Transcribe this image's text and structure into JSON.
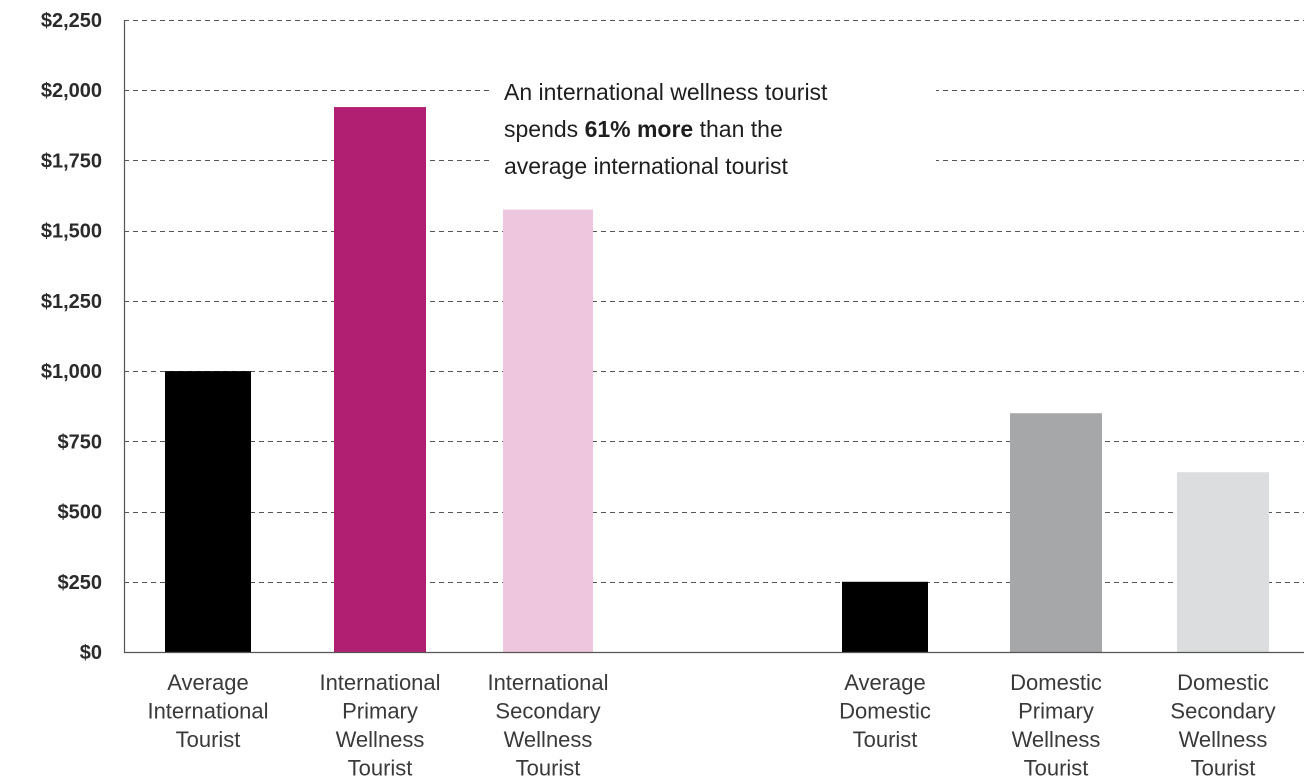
{
  "chart_data": {
    "type": "bar",
    "title": "",
    "xlabel": "",
    "ylabel": "",
    "ylim": [
      0,
      2250
    ],
    "grid": true,
    "yticks": [
      "$0",
      "$250",
      "$500",
      "$750",
      "$1,000",
      "$1,250",
      "$1,500",
      "$1,750",
      "$2,000",
      "$2,250"
    ],
    "ytick_values": [
      0,
      250,
      500,
      750,
      1000,
      1250,
      1500,
      1750,
      2000,
      2250
    ],
    "bars": [
      {
        "label": [
          "Average",
          "International",
          "Tourist"
        ],
        "value": 1000,
        "color": "#000000"
      },
      {
        "label": [
          "International",
          "Primary",
          "Wellness",
          "Tourist"
        ],
        "value": 1940,
        "color": "#b01f72"
      },
      {
        "label": [
          "International",
          "Secondary",
          "Wellness",
          "Tourist"
        ],
        "value": 1575,
        "color": "#eec7df"
      },
      {
        "label": [
          "Average",
          "Domestic",
          "Tourist"
        ],
        "value": 250,
        "color": "#000000"
      },
      {
        "label": [
          "Domestic",
          "Primary",
          "Wellness",
          "Tourist"
        ],
        "value": 850,
        "color": "#a6a7a9"
      },
      {
        "label": [
          "Domestic",
          "Secondary",
          "Wellness",
          "Tourist"
        ],
        "value": 640,
        "color": "#dcddde"
      }
    ],
    "annotation": {
      "line1": "An international wellness tourist",
      "line2_pre": "spends ",
      "line2_bold": "61% more",
      "line2_post": " than the",
      "line3": "average international tourist"
    }
  }
}
